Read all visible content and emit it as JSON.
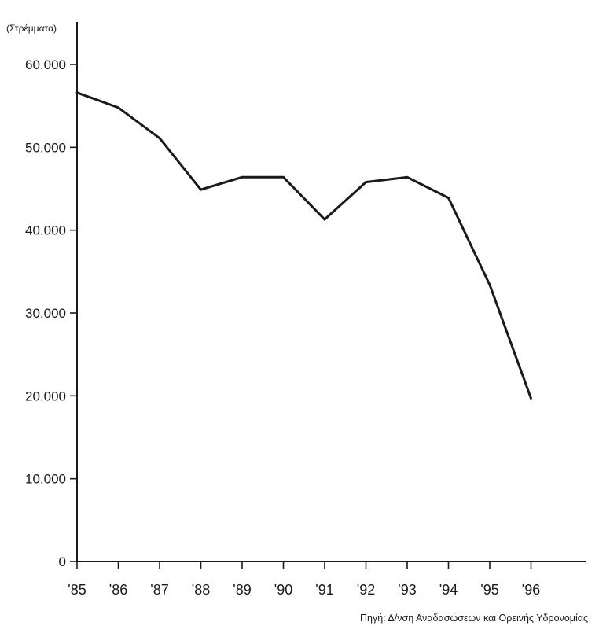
{
  "chart_data": {
    "type": "line",
    "unit_label": "(Στρέμματα)",
    "categories": [
      "'85",
      "'86",
      "'87",
      "'88",
      "'89",
      "'90",
      "'91",
      "'92",
      "'93",
      "'94",
      "'95",
      "'96"
    ],
    "values": [
      56600,
      54800,
      51100,
      44900,
      46400,
      46400,
      41300,
      45800,
      46400,
      43900,
      33400,
      19700
    ],
    "yticks": [
      0,
      10000,
      20000,
      30000,
      40000,
      50000,
      60000
    ],
    "ytick_labels": [
      "0",
      "10.000",
      "20.000",
      "30.000",
      "40.000",
      "50.000",
      "60.000"
    ],
    "ylim": [
      0,
      63000
    ],
    "grid": false,
    "line_color": "#1a1a1a"
  },
  "source_note": "Πηγή: Δ/νση Αναδασώσεων και Ορεινής Υδρονομίας"
}
